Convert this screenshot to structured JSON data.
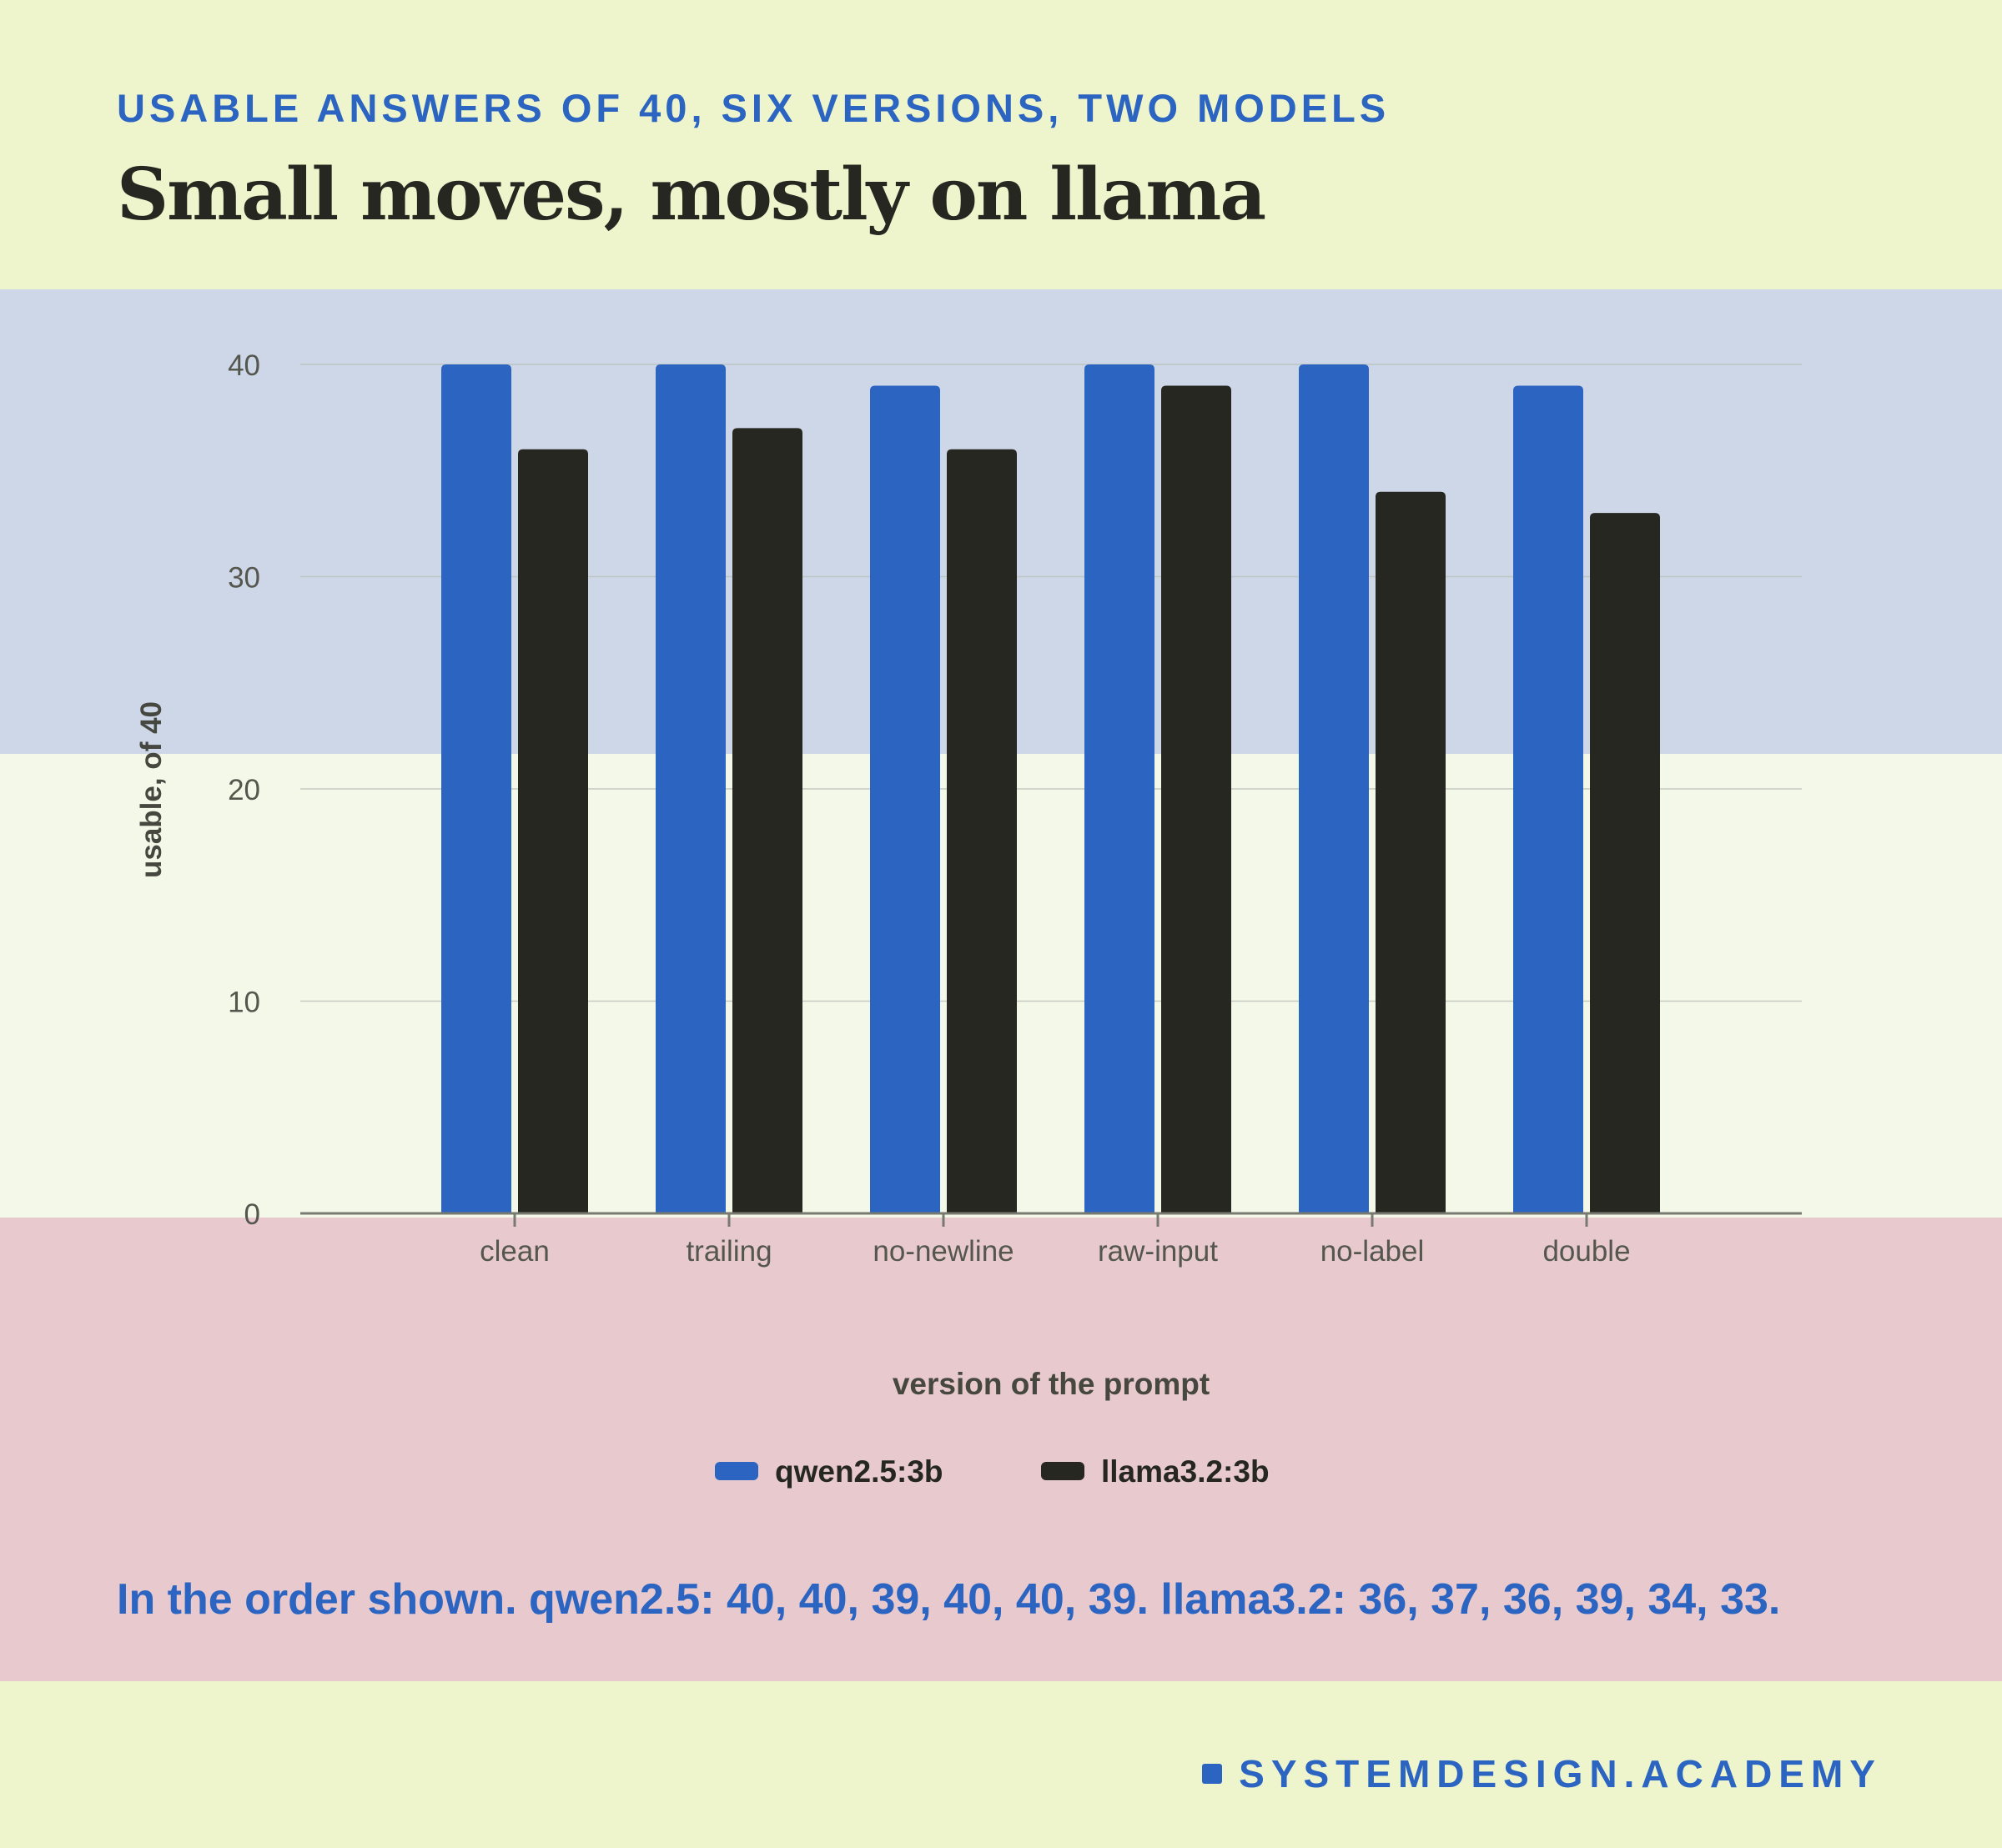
{
  "header": {
    "eyebrow": "USABLE ANSWERS OF 40, SIX VERSIONS, TWO MODELS",
    "title": "Small moves, mostly on llama"
  },
  "chart_data": {
    "type": "bar",
    "categories": [
      "clean",
      "trailing",
      "no-newline",
      "raw-input",
      "no-label",
      "double"
    ],
    "series": [
      {
        "name": "qwen2.5:3b",
        "values": [
          40,
          40,
          39,
          40,
          40,
          39
        ],
        "color": "#2b64c1"
      },
      {
        "name": "llama3.2:3b",
        "values": [
          36,
          37,
          36,
          39,
          34,
          33
        ],
        "color": "#262721"
      }
    ],
    "xlabel": "version of the prompt",
    "ylabel": "usable, of 40",
    "ylim": [
      0,
      40
    ],
    "yticks": [
      0,
      10,
      20,
      30,
      40
    ],
    "grid": true,
    "legend": "bottom-center"
  },
  "caption": "In the order shown. qwen2.5: 40, 40, 39, 40, 40, 39. llama3.2: 36, 37, 36, 39, 34, 33.",
  "brand": {
    "label": "SYSTEMDESIGN.ACADEMY"
  }
}
